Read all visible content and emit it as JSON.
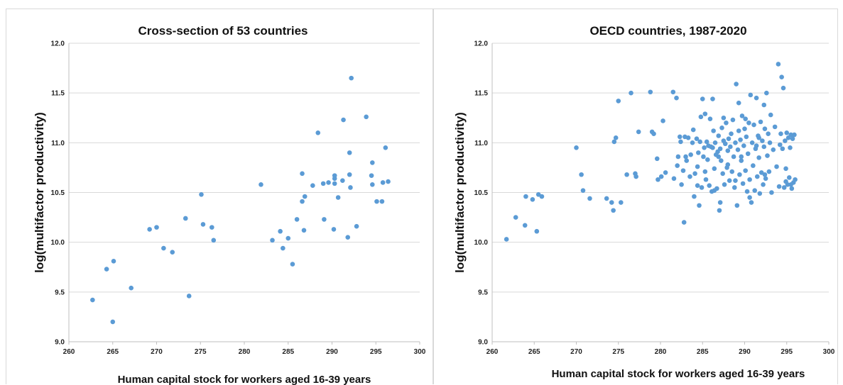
{
  "chart_data": [
    {
      "type": "scatter",
      "title": "Cross-section of 53 countries",
      "xlabel": "Human capital stock for workers aged 16-39 years",
      "ylabel": "log(multifactor productivity)",
      "xlim": [
        260,
        300
      ],
      "ylim": [
        9.0,
        12.0
      ],
      "xticks": [
        "260",
        "265",
        "270",
        "275",
        "280",
        "285",
        "290",
        "295",
        "300"
      ],
      "yticks": [
        "9.0",
        "9.5",
        "10.0",
        "10.5",
        "11.0",
        "11.5",
        "12.0"
      ],
      "grid": "horizontal",
      "color": "#5b9bd5",
      "points": [
        [
          262.7,
          9.42
        ],
        [
          264.3,
          9.73
        ],
        [
          265.1,
          9.81
        ],
        [
          265.0,
          9.2
        ],
        [
          267.1,
          9.54
        ],
        [
          269.2,
          10.13
        ],
        [
          270.0,
          10.15
        ],
        [
          270.8,
          9.94
        ],
        [
          271.8,
          9.9
        ],
        [
          273.3,
          10.24
        ],
        [
          273.7,
          9.46
        ],
        [
          275.1,
          10.48
        ],
        [
          275.3,
          10.18
        ],
        [
          276.3,
          10.15
        ],
        [
          276.5,
          10.02
        ],
        [
          281.9,
          10.58
        ],
        [
          283.2,
          10.02
        ],
        [
          284.1,
          10.11
        ],
        [
          284.4,
          9.94
        ],
        [
          285.0,
          10.04
        ],
        [
          285.5,
          9.78
        ],
        [
          286.0,
          10.23
        ],
        [
          286.6,
          10.69
        ],
        [
          286.6,
          10.41
        ],
        [
          286.8,
          10.12
        ],
        [
          286.9,
          10.46
        ],
        [
          287.8,
          10.57
        ],
        [
          288.4,
          11.1
        ],
        [
          289.0,
          10.59
        ],
        [
          289.1,
          10.23
        ],
        [
          289.6,
          10.6
        ],
        [
          290.2,
          10.13
        ],
        [
          290.3,
          10.64
        ],
        [
          290.3,
          10.67
        ],
        [
          290.3,
          10.59
        ],
        [
          290.7,
          10.45
        ],
        [
          291.2,
          10.62
        ],
        [
          291.3,
          11.23
        ],
        [
          291.8,
          10.05
        ],
        [
          292.0,
          10.68
        ],
        [
          292.0,
          10.9
        ],
        [
          292.1,
          10.55
        ],
        [
          292.2,
          11.65
        ],
        [
          292.8,
          10.16
        ],
        [
          293.9,
          11.26
        ],
        [
          294.5,
          10.67
        ],
        [
          294.6,
          10.8
        ],
        [
          294.6,
          10.58
        ],
        [
          295.1,
          10.41
        ],
        [
          295.7,
          10.41
        ],
        [
          295.8,
          10.6
        ],
        [
          296.1,
          10.95
        ],
        [
          296.4,
          10.61
        ]
      ]
    },
    {
      "type": "scatter",
      "title": "OECD countries, 1987-2020",
      "xlabel": "Human capital stock for workers aged 16-39 years",
      "ylabel": "log(multifactor productivity)",
      "xlim": [
        260,
        300
      ],
      "ylim": [
        9.0,
        12.0
      ],
      "xticks": [
        "260",
        "265",
        "270",
        "275",
        "280",
        "285",
        "290",
        "295",
        "300"
      ],
      "yticks": [
        "9.0",
        "9.5",
        "10.0",
        "10.5",
        "11.0",
        "11.5",
        "12.0"
      ],
      "grid": "horizontal",
      "color": "#5b9bd5",
      "points": [
        [
          261.7,
          10.03
        ],
        [
          262.8,
          10.25
        ],
        [
          263.9,
          10.17
        ],
        [
          264.0,
          10.46
        ],
        [
          264.8,
          10.43
        ],
        [
          265.3,
          10.11
        ],
        [
          265.5,
          10.48
        ],
        [
          265.9,
          10.46
        ],
        [
          270.0,
          10.95
        ],
        [
          270.6,
          10.68
        ],
        [
          270.8,
          10.52
        ],
        [
          271.6,
          10.44
        ],
        [
          273.6,
          10.44
        ],
        [
          274.2,
          10.4
        ],
        [
          274.4,
          10.32
        ],
        [
          274.5,
          11.01
        ],
        [
          274.7,
          11.05
        ],
        [
          275.0,
          11.42
        ],
        [
          275.3,
          10.4
        ],
        [
          276.0,
          10.68
        ],
        [
          276.5,
          11.5
        ],
        [
          277.0,
          10.69
        ],
        [
          277.1,
          10.66
        ],
        [
          277.4,
          11.11
        ],
        [
          278.8,
          11.51
        ],
        [
          279.0,
          11.11
        ],
        [
          279.2,
          11.09
        ],
        [
          279.6,
          10.84
        ],
        [
          279.7,
          10.63
        ],
        [
          280.1,
          10.66
        ],
        [
          280.3,
          11.22
        ],
        [
          280.6,
          10.7
        ],
        [
          281.5,
          11.51
        ],
        [
          281.6,
          10.64
        ],
        [
          281.9,
          11.45
        ],
        [
          282.0,
          10.77
        ],
        [
          282.1,
          10.86
        ],
        [
          282.3,
          11.06
        ],
        [
          282.4,
          11.01
        ],
        [
          282.5,
          10.58
        ],
        [
          282.7,
          10.72
        ],
        [
          282.8,
          10.2
        ],
        [
          283.0,
          10.86
        ],
        [
          283.1,
          10.82
        ],
        [
          283.3,
          11.05
        ],
        [
          283.5,
          10.66
        ],
        [
          283.6,
          10.88
        ],
        [
          283.8,
          11.0
        ],
        [
          284.0,
          10.46
        ],
        [
          284.1,
          10.69
        ],
        [
          284.3,
          11.04
        ],
        [
          284.4,
          10.76
        ],
        [
          284.5,
          10.9
        ],
        [
          284.6,
          10.37
        ],
        [
          284.7,
          11.01
        ],
        [
          284.9,
          10.55
        ],
        [
          285.0,
          11.44
        ],
        [
          285.1,
          10.86
        ],
        [
          285.2,
          10.95
        ],
        [
          285.3,
          11.29
        ],
        [
          285.4,
          10.63
        ],
        [
          285.5,
          11.01
        ],
        [
          285.6,
          10.83
        ],
        [
          285.7,
          10.97
        ],
        [
          285.8,
          10.57
        ],
        [
          285.9,
          11.24
        ],
        [
          286.0,
          10.96
        ],
        [
          286.1,
          10.51
        ],
        [
          286.2,
          10.95
        ],
        [
          286.3,
          11.12
        ],
        [
          286.4,
          10.74
        ],
        [
          286.5,
          11.0
        ],
        [
          286.6,
          10.88
        ],
        [
          286.7,
          10.54
        ],
        [
          286.8,
          10.91
        ],
        [
          286.9,
          11.07
        ],
        [
          287.0,
          10.32
        ],
        [
          287.1,
          10.94
        ],
        [
          287.2,
          10.82
        ],
        [
          287.3,
          11.15
        ],
        [
          287.4,
          10.69
        ],
        [
          287.5,
          11.02
        ],
        [
          287.6,
          10.58
        ],
        [
          287.7,
          10.99
        ],
        [
          287.8,
          11.2
        ],
        [
          287.9,
          10.75
        ],
        [
          288.0,
          10.92
        ],
        [
          288.1,
          11.04
        ],
        [
          288.2,
          10.62
        ],
        [
          288.3,
          10.96
        ],
        [
          288.4,
          11.09
        ],
        [
          288.5,
          10.71
        ],
        [
          288.6,
          11.23
        ],
        [
          288.7,
          10.86
        ],
        [
          288.8,
          10.55
        ],
        [
          288.9,
          11.0
        ],
        [
          289.0,
          11.59
        ],
        [
          289.1,
          10.37
        ],
        [
          289.2,
          10.93
        ],
        [
          289.3,
          11.12
        ],
        [
          289.4,
          10.68
        ],
        [
          289.5,
          11.03
        ],
        [
          289.6,
          10.82
        ],
        [
          289.7,
          11.27
        ],
        [
          289.8,
          10.59
        ],
        [
          289.9,
          10.97
        ],
        [
          290.0,
          11.14
        ],
        [
          290.1,
          10.72
        ],
        [
          290.2,
          11.06
        ],
        [
          290.3,
          10.51
        ],
        [
          290.4,
          10.89
        ],
        [
          290.5,
          11.2
        ],
        [
          290.6,
          10.63
        ],
        [
          290.7,
          11.48
        ],
        [
          290.8,
          10.4
        ],
        [
          290.9,
          11.0
        ],
        [
          291.0,
          10.77
        ],
        [
          291.1,
          11.18
        ],
        [
          291.2,
          10.52
        ],
        [
          291.3,
          10.94
        ],
        [
          291.4,
          11.45
        ],
        [
          291.5,
          10.66
        ],
        [
          291.6,
          11.07
        ],
        [
          291.7,
          10.85
        ],
        [
          291.8,
          10.49
        ],
        [
          291.9,
          11.21
        ],
        [
          292.0,
          10.7
        ],
        [
          292.1,
          11.02
        ],
        [
          292.2,
          10.58
        ],
        [
          292.3,
          10.96
        ],
        [
          292.4,
          11.14
        ],
        [
          292.5,
          10.64
        ],
        [
          292.6,
          11.5
        ],
        [
          292.7,
          10.87
        ],
        [
          292.8,
          11.09
        ],
        [
          292.9,
          10.71
        ],
        [
          293.0,
          11.0
        ],
        [
          293.2,
          10.5
        ],
        [
          293.4,
          10.93
        ],
        [
          293.6,
          11.16
        ],
        [
          293.8,
          10.76
        ],
        [
          294.0,
          11.79
        ],
        [
          294.1,
          10.56
        ],
        [
          294.2,
          10.98
        ],
        [
          294.3,
          11.09
        ],
        [
          294.4,
          11.66
        ],
        [
          294.5,
          10.94
        ],
        [
          294.6,
          11.55
        ],
        [
          294.7,
          10.55
        ],
        [
          294.8,
          11.02
        ],
        [
          294.9,
          10.74
        ],
        [
          295.0,
          11.1
        ],
        [
          295.1,
          10.58
        ],
        [
          295.2,
          11.05
        ],
        [
          295.3,
          10.65
        ],
        [
          295.4,
          10.95
        ],
        [
          295.5,
          11.08
        ],
        [
          295.6,
          10.54
        ],
        [
          295.7,
          11.04
        ],
        [
          295.8,
          10.6
        ],
        [
          295.9,
          11.08
        ],
        [
          296.0,
          10.63
        ],
        [
          295.5,
          10.58
        ],
        [
          294.9,
          10.61
        ],
        [
          292.4,
          10.68
        ],
        [
          290.6,
          10.45
        ],
        [
          288.9,
          10.62
        ],
        [
          287.1,
          10.4
        ],
        [
          286.4,
          10.52
        ],
        [
          285.3,
          10.71
        ],
        [
          291.7,
          11.05
        ],
        [
          290.1,
          11.24
        ],
        [
          289.3,
          11.4
        ],
        [
          287.5,
          11.25
        ],
        [
          286.2,
          11.44
        ],
        [
          284.8,
          11.26
        ],
        [
          283.9,
          11.13
        ],
        [
          282.9,
          11.06
        ],
        [
          293.1,
          11.28
        ],
        [
          292.3,
          11.38
        ],
        [
          291.4,
          10.97
        ],
        [
          289.6,
          10.86
        ],
        [
          288.0,
          10.78
        ],
        [
          286.9,
          10.86
        ],
        [
          284.4,
          10.57
        ]
      ]
    }
  ]
}
